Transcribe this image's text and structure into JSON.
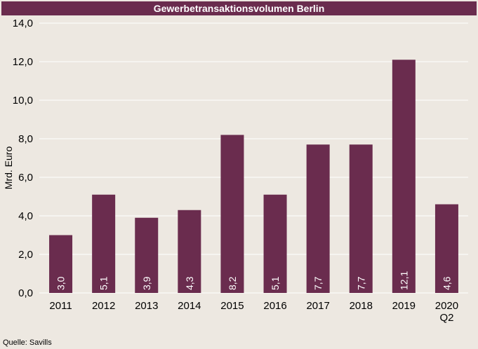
{
  "chart_data": {
    "type": "bar",
    "title": "Gewerbetransaktionsvolumen Berlin",
    "ylabel": "Mrd. Euro",
    "xlabel": "",
    "categories": [
      "2011",
      "2012",
      "2013",
      "2014",
      "2015",
      "2016",
      "2017",
      "2018",
      "2019",
      "2020\nQ2"
    ],
    "values": [
      3.0,
      5.1,
      3.9,
      4.3,
      8.2,
      5.1,
      7.7,
      7.7,
      12.1,
      4.6
    ],
    "value_labels": [
      "3,0",
      "5,1",
      "3,9",
      "4,3",
      "8,2",
      "5,1",
      "7,7",
      "7,7",
      "12,1",
      "4,6"
    ],
    "y_ticks": [
      "0,0",
      "2,0",
      "4,0",
      "6,0",
      "8,0",
      "10,0",
      "12,0",
      "14,0"
    ],
    "ylim": [
      0,
      14
    ],
    "grid": true,
    "legend": "none",
    "colors": {
      "bar": "#6a2c4e",
      "background": "#ede8e1",
      "grid": "#ffffff"
    }
  },
  "source": "Quelle: Savills"
}
